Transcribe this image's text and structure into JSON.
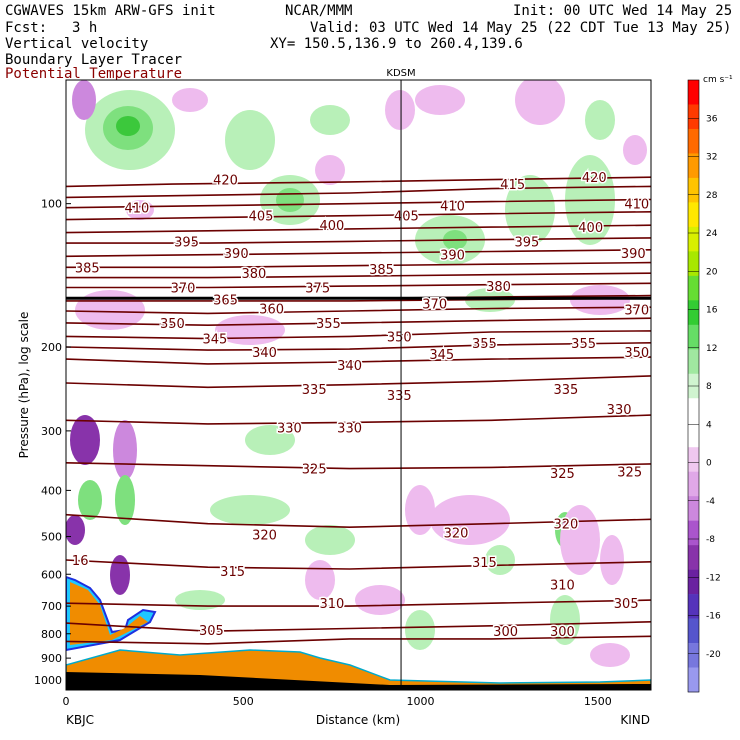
{
  "header": {
    "model": "CGWAVES 15km ARW-GFS init",
    "org": "NCAR/MMM",
    "init": "Init: 00 UTC Wed 14 May 25",
    "fcst_label": "Fcst:",
    "fcst_value": "3 h",
    "valid": "Valid: 03 UTC Wed 14 May 25 (22 CDT Tue 13 May 25)",
    "field1": "Vertical velocity",
    "xy": "XY= 150.5,136.9 to 260.4,139.6",
    "field2": "Boundary Layer Tracer",
    "field3": "Potential Temperature"
  },
  "colors": {
    "theta_contour": "#6b0000",
    "tropopause": "#000000",
    "terrain": "#f08c00",
    "up_light": "#b8f0b8",
    "up_mid": "#7ee07e",
    "up_strong": "#3cc83c",
    "down_light": "#eebbee",
    "down_mid": "#cc88dd",
    "down_strong": "#8833aa"
  },
  "chart_data": {
    "type": "cross-section",
    "title": "KDSM",
    "xlabel": "Distance (km)",
    "ylabel": "Pressure (hPa), log scale",
    "x_ticks": [
      "0",
      "500",
      "1000",
      "1500"
    ],
    "y_ticks": [
      "100",
      "200",
      "300",
      "400",
      "500",
      "600",
      "700",
      "800",
      "900",
      "1000"
    ],
    "left_station": "KBJC",
    "right_station": "KIND",
    "marker_station": "KDSM",
    "marker_x_km": 945,
    "xlim": [
      0,
      1650
    ],
    "ylim": [
      1050,
      55
    ],
    "colorbar": {
      "units": "cm s⁻¹",
      "labels": [
        "36",
        "32",
        "28",
        "24",
        "20",
        "16",
        "12",
        "8",
        "4",
        "0",
        "-4",
        "-8",
        "-12",
        "-16",
        "-20"
      ],
      "colors": [
        "#ff0000",
        "#ff3a00",
        "#ff6a00",
        "#ff9a00",
        "#ffc400",
        "#ffe800",
        "#d8f000",
        "#a8e800",
        "#66dd33",
        "#33cc33",
        "#66dd66",
        "#a0e8a0",
        "#d0f4d0",
        "#ffffff",
        "#ffffff",
        "#f0c8f0",
        "#e0a8e8",
        "#cc88dd",
        "#aa55cc",
        "#8833aa",
        "#6a22a0",
        "#5533bb",
        "#5555cc",
        "#7777dd",
        "#9999ee"
      ]
    },
    "theta_contours": [
      {
        "label": "420",
        "points": [
          [
            0,
            92
          ],
          [
            300,
            91
          ],
          [
            800,
            90
          ],
          [
            1200,
            89
          ],
          [
            1650,
            88
          ]
        ]
      },
      {
        "label": "415",
        "points": [
          [
            0,
            97
          ],
          [
            400,
            96
          ],
          [
            800,
            95
          ],
          [
            1200,
            93
          ],
          [
            1650,
            92
          ]
        ]
      },
      {
        "label": "410",
        "points": [
          [
            0,
            102
          ],
          [
            400,
            101
          ],
          [
            800,
            100
          ],
          [
            1200,
            99
          ],
          [
            1650,
            98
          ]
        ]
      },
      {
        "label": "405",
        "points": [
          [
            0,
            108
          ],
          [
            400,
            107
          ],
          [
            800,
            106
          ],
          [
            1200,
            105
          ],
          [
            1650,
            104
          ]
        ]
      },
      {
        "label": "400",
        "points": [
          [
            0,
            115
          ],
          [
            400,
            114
          ],
          [
            800,
            113
          ],
          [
            1200,
            112
          ],
          [
            1650,
            111
          ]
        ]
      },
      {
        "label": "395",
        "points": [
          [
            0,
            121
          ],
          [
            400,
            121
          ],
          [
            800,
            120
          ],
          [
            1200,
            119
          ],
          [
            1650,
            118
          ]
        ]
      },
      {
        "label": "390",
        "points": [
          [
            0,
            129
          ],
          [
            400,
            128
          ],
          [
            800,
            127
          ],
          [
            1200,
            126
          ],
          [
            1650,
            125
          ]
        ]
      },
      {
        "label": "385",
        "points": [
          [
            0,
            136
          ],
          [
            400,
            136
          ],
          [
            800,
            135
          ],
          [
            1200,
            134
          ],
          [
            1650,
            133
          ]
        ]
      },
      {
        "label": "380",
        "points": [
          [
            0,
            143
          ],
          [
            400,
            143
          ],
          [
            800,
            142
          ],
          [
            1200,
            141
          ],
          [
            1650,
            140
          ]
        ]
      },
      {
        "label": "375",
        "points": [
          [
            0,
            150
          ],
          [
            400,
            150
          ],
          [
            800,
            149
          ],
          [
            1200,
            148
          ],
          [
            1650,
            147
          ]
        ]
      },
      {
        "label": "370",
        "points": [
          [
            0,
            158
          ],
          [
            400,
            158
          ],
          [
            800,
            158
          ],
          [
            1200,
            157
          ],
          [
            1650,
            156
          ]
        ]
      },
      {
        "label": "365",
        "points": [
          [
            0,
            160
          ],
          [
            400,
            160
          ],
          [
            800,
            160
          ],
          [
            1200,
            159
          ],
          [
            1650,
            158
          ]
        ]
      },
      {
        "label": "360",
        "points": [
          [
            0,
            168
          ],
          [
            400,
            170
          ],
          [
            800,
            168
          ],
          [
            1200,
            166
          ],
          [
            1650,
            165
          ]
        ]
      },
      {
        "label": "355",
        "points": [
          [
            0,
            178
          ],
          [
            400,
            180
          ],
          [
            800,
            178
          ],
          [
            1200,
            176
          ],
          [
            1650,
            174
          ]
        ]
      },
      {
        "label": "350",
        "points": [
          [
            0,
            190
          ],
          [
            400,
            192
          ],
          [
            800,
            190
          ],
          [
            1200,
            186
          ],
          [
            1650,
            185
          ]
        ]
      },
      {
        "label": "345",
        "points": [
          [
            0,
            200
          ],
          [
            400,
            203
          ],
          [
            800,
            202
          ],
          [
            1200,
            198
          ],
          [
            1650,
            196
          ]
        ]
      },
      {
        "label": "340",
        "points": [
          [
            0,
            212
          ],
          [
            400,
            217
          ],
          [
            800,
            215
          ],
          [
            1200,
            212
          ],
          [
            1650,
            210
          ]
        ]
      },
      {
        "label": "335",
        "points": [
          [
            0,
            238
          ],
          [
            400,
            243
          ],
          [
            800,
            240
          ],
          [
            1200,
            236
          ],
          [
            1650,
            230
          ]
        ]
      },
      {
        "label": "330",
        "points": [
          [
            0,
            285
          ],
          [
            400,
            290
          ],
          [
            800,
            288
          ],
          [
            1200,
            285
          ],
          [
            1650,
            278
          ]
        ]
      },
      {
        "label": "325",
        "points": [
          [
            0,
            350
          ],
          [
            400,
            355
          ],
          [
            800,
            360
          ],
          [
            1200,
            358
          ],
          [
            1650,
            352
          ]
        ]
      },
      {
        "label": "320",
        "points": [
          [
            0,
            450
          ],
          [
            400,
            470
          ],
          [
            800,
            478
          ],
          [
            1200,
            470
          ],
          [
            1650,
            460
          ]
        ]
      },
      {
        "label": "315",
        "points": [
          [
            0,
            560
          ],
          [
            400,
            580
          ],
          [
            800,
            585
          ],
          [
            1200,
            575
          ],
          [
            1650,
            565
          ]
        ]
      },
      {
        "label": "310",
        "points": [
          [
            0,
            690
          ],
          [
            400,
            700
          ],
          [
            800,
            700
          ],
          [
            1200,
            690
          ],
          [
            1650,
            680
          ]
        ]
      },
      {
        "label": "305",
        "points": [
          [
            0,
            760
          ],
          [
            400,
            790
          ],
          [
            800,
            780
          ],
          [
            1200,
            770
          ],
          [
            1650,
            755
          ]
        ]
      },
      {
        "label": "300",
        "points": [
          [
            0,
            830
          ],
          [
            400,
            840
          ],
          [
            800,
            820
          ],
          [
            1200,
            820
          ],
          [
            1650,
            810
          ]
        ]
      }
    ],
    "contour_labels": [
      {
        "text": "420",
        "x": 450,
        "p": 89
      },
      {
        "text": "415",
        "x": 1260,
        "p": 91
      },
      {
        "text": "420",
        "x": 1490,
        "p": 88
      },
      {
        "text": "410",
        "x": 200,
        "p": 102
      },
      {
        "text": "405",
        "x": 550,
        "p": 106
      },
      {
        "text": "400",
        "x": 750,
        "p": 111
      },
      {
        "text": "405",
        "x": 960,
        "p": 106
      },
      {
        "text": "410",
        "x": 1090,
        "p": 101
      },
      {
        "text": "400",
        "x": 1480,
        "p": 112
      },
      {
        "text": "410",
        "x": 1610,
        "p": 100
      },
      {
        "text": "395",
        "x": 340,
        "p": 120
      },
      {
        "text": "390",
        "x": 480,
        "p": 127
      },
      {
        "text": "395",
        "x": 1300,
        "p": 120
      },
      {
        "text": "390",
        "x": 1090,
        "p": 128
      },
      {
        "text": "390",
        "x": 1600,
        "p": 127
      },
      {
        "text": "385",
        "x": 60,
        "p": 136
      },
      {
        "text": "380",
        "x": 530,
        "p": 140
      },
      {
        "text": "385",
        "x": 890,
        "p": 137
      },
      {
        "text": "380",
        "x": 1220,
        "p": 149
      },
      {
        "text": "375",
        "x": 710,
        "p": 150
      },
      {
        "text": "370",
        "x": 330,
        "p": 150
      },
      {
        "text": "370",
        "x": 1040,
        "p": 162
      },
      {
        "text": "370",
        "x": 1610,
        "p": 167
      },
      {
        "text": "365",
        "x": 450,
        "p": 159
      },
      {
        "text": "360",
        "x": 580,
        "p": 166
      },
      {
        "text": "355",
        "x": 740,
        "p": 178
      },
      {
        "text": "355",
        "x": 1180,
        "p": 196
      },
      {
        "text": "355",
        "x": 1460,
        "p": 196
      },
      {
        "text": "350",
        "x": 300,
        "p": 178
      },
      {
        "text": "350",
        "x": 940,
        "p": 190
      },
      {
        "text": "350",
        "x": 1610,
        "p": 205
      },
      {
        "text": "345",
        "x": 420,
        "p": 192
      },
      {
        "text": "345",
        "x": 1060,
        "p": 207
      },
      {
        "text": "340",
        "x": 560,
        "p": 205
      },
      {
        "text": "340",
        "x": 800,
        "p": 218
      },
      {
        "text": "335",
        "x": 700,
        "p": 245
      },
      {
        "text": "335",
        "x": 940,
        "p": 252
      },
      {
        "text": "335",
        "x": 1410,
        "p": 245
      },
      {
        "text": "330",
        "x": 630,
        "p": 295
      },
      {
        "text": "330",
        "x": 800,
        "p": 295
      },
      {
        "text": "330",
        "x": 1560,
        "p": 270
      },
      {
        "text": "325",
        "x": 700,
        "p": 360
      },
      {
        "text": "325",
        "x": 1400,
        "p": 368
      },
      {
        "text": "325",
        "x": 1590,
        "p": 365
      },
      {
        "text": "320",
        "x": 560,
        "p": 495
      },
      {
        "text": "320",
        "x": 1100,
        "p": 490
      },
      {
        "text": "320",
        "x": 1410,
        "p": 470
      },
      {
        "text": "315",
        "x": 470,
        "p": 590
      },
      {
        "text": "315",
        "x": 1180,
        "p": 565
      },
      {
        "text": "310",
        "x": 750,
        "p": 690
      },
      {
        "text": "310",
        "x": 1400,
        "p": 630
      },
      {
        "text": "305",
        "x": 410,
        "p": 785
      },
      {
        "text": "305",
        "x": 1580,
        "p": 690
      },
      {
        "text": "300",
        "x": 1240,
        "p": 790
      },
      {
        "text": "300",
        "x": 1400,
        "p": 790
      },
      {
        "text": "16",
        "x": 40,
        "p": 560
      }
    ]
  }
}
